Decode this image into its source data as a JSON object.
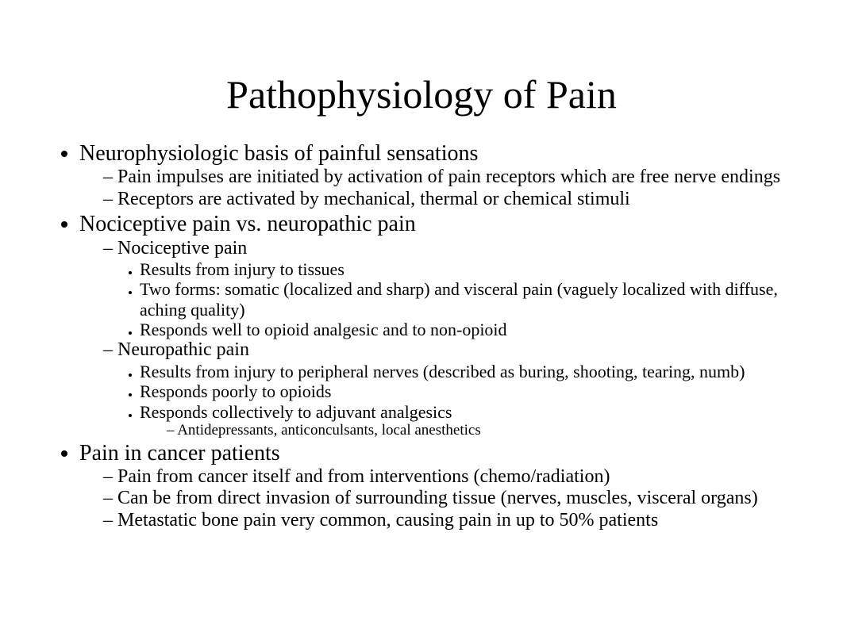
{
  "title": "Pathophysiology of Pain",
  "b1": {
    "text": "Neurophysiologic basis of painful sensations",
    "s1": "Pain impulses are initiated by activation of pain receptors which are free nerve endings",
    "s2": "Receptors are activated by mechanical, thermal or chemical stimuli"
  },
  "b2": {
    "text": "Nociceptive pain vs. neuropathic pain",
    "s1": {
      "text": "Nociceptive pain",
      "t1": "Results from injury to tissues",
      "t2": "Two forms: somatic (localized and sharp) and visceral pain (vaguely localized with diffuse, aching quality)",
      "t3": "Responds well to opioid analgesic and to non-opioid"
    },
    "s2": {
      "text": "Neuropathic pain",
      "t1": "Results from injury to peripheral nerves (described as buring, shooting, tearing, numb)",
      "t2": "Responds poorly to opioids",
      "t3": {
        "text": "Responds collectively to adjuvant analgesics",
        "q1": "Antidepressants, anticonculsants, local anesthetics"
      }
    }
  },
  "b3": {
    "text": "Pain in cancer patients",
    "s1": "Pain from cancer itself and from interventions (chemo/radiation)",
    "s2": "Can be from direct invasion of surrounding tissue (nerves, muscles, visceral organs)",
    "s3": "Metastatic bone pain very common, causing pain in up to 50% patients"
  }
}
